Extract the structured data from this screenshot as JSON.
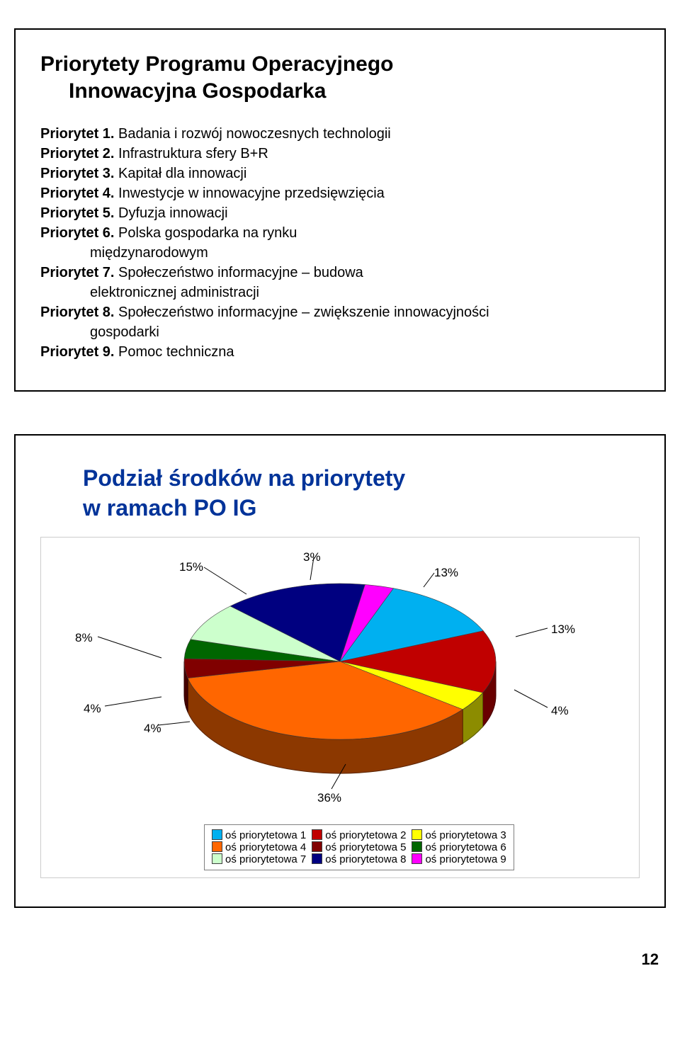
{
  "slide1": {
    "title_line1": "Priorytety Programu Operacyjnego",
    "title_line2": "Innowacyjna Gospodarka",
    "items": [
      {
        "head": "Priorytet 1.",
        "tail": " Badania i rozwój nowoczesnych technologii",
        "indent": false
      },
      {
        "head": "Priorytet 2.",
        "tail": " Infrastruktura sfery B+R",
        "indent": false
      },
      {
        "head": "Priorytet 3.",
        "tail": " Kapitał dla innowacji",
        "indent": false
      },
      {
        "head": "Priorytet 4.",
        "tail": " Inwestycje w innowacyjne przedsięwzięcia",
        "indent": false
      },
      {
        "head": "Priorytet 5.",
        "tail": " Dyfuzja innowacji",
        "indent": false
      },
      {
        "head": "Priorytet 6.",
        "tail": " Polska gospodarka na rynku",
        "indent": false
      },
      {
        "head": "",
        "tail": "międzynarodowym",
        "indent": true
      },
      {
        "head": "Priorytet 7.",
        "tail": " Społeczeństwo informacyjne – budowa",
        "indent": false
      },
      {
        "head": "",
        "tail": "elektronicznej administracji",
        "indent": true
      },
      {
        "head": "Priorytet 8.",
        "tail": " Społeczeństwo informacyjne – zwiększenie innowacyjności",
        "indent": false
      },
      {
        "head": "",
        "tail": "gospodarki",
        "indent": true
      },
      {
        "head": "Priorytet 9.",
        "tail": " Pomoc techniczna",
        "indent": false
      }
    ]
  },
  "slide2": {
    "title_line1": "Podział środków na priorytety",
    "title_line2": "w ramach PO IG",
    "chart": {
      "type": "pie-3d",
      "background_color": "#ffffff",
      "border_color": "#cccccc",
      "slices": [
        {
          "label": "oś priorytetowa 1",
          "value": 13,
          "color": "#00b0f0",
          "display": "13%"
        },
        {
          "label": "oś priorytetowa 2",
          "value": 13,
          "color": "#c00000",
          "display": "13%"
        },
        {
          "label": "oś priorytetowa 3",
          "value": 4,
          "color": "#ffff00",
          "display": "4%"
        },
        {
          "label": "oś priorytetowa 4",
          "value": 36,
          "color": "#ff6600",
          "display": "36%"
        },
        {
          "label": "oś priorytetowa 5",
          "value": 4,
          "color": "#800000",
          "display": "4%"
        },
        {
          "label": "oś priorytetowa 6",
          "value": 4,
          "color": "#006600",
          "display": "4%"
        },
        {
          "label": "oś priorytetowa 7",
          "value": 8,
          "color": "#ccffcc",
          "display": "8%"
        },
        {
          "label": "oś priorytetowa 8",
          "value": 15,
          "color": "#000080",
          "display": "15%"
        },
        {
          "label": "oś priorytetowa 9",
          "value": 3,
          "color": "#ff00ff",
          "display": "3%"
        }
      ],
      "label_fontsize": 17,
      "label_color": "#000000",
      "legend": {
        "border_color": "#808080",
        "fontsize": 15
      }
    }
  },
  "page_number": "12"
}
